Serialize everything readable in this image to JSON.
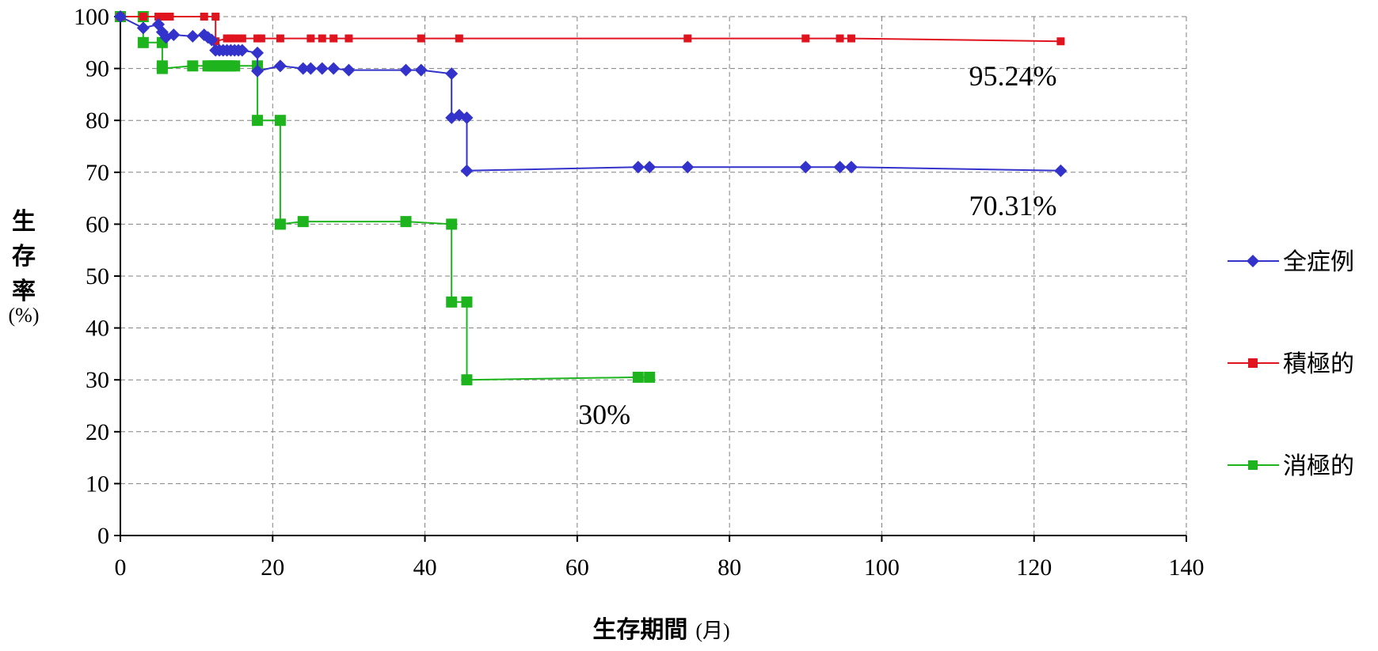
{
  "chart_data": {
    "type": "line",
    "xlabel": "生存期間",
    "xlabel_unit": "(月)",
    "ylabel": "生存率",
    "ylabel_unit": "(%)",
    "xlim": [
      0,
      140
    ],
    "ylim": [
      0,
      100
    ],
    "xticks": [
      0,
      20,
      40,
      60,
      80,
      100,
      120,
      140
    ],
    "yticks": [
      0,
      10,
      20,
      30,
      40,
      50,
      60,
      70,
      80,
      90,
      100
    ],
    "grid": true,
    "legend_position": "right",
    "series": [
      {
        "name": "全症例",
        "color": "#3333cc",
        "marker": "diamond",
        "x": [
          0,
          3,
          5,
          5.5,
          6,
          7,
          9.5,
          11,
          11.5,
          12,
          12.5,
          13,
          13.5,
          14,
          14.5,
          15,
          15.5,
          16,
          18,
          18,
          21,
          24,
          25,
          26.5,
          28,
          30,
          37.5,
          39.5,
          43.5,
          43.5,
          44.5,
          45.5,
          45.5,
          68,
          69.5,
          74.5,
          90,
          94.5,
          96,
          123.5
        ],
        "y": [
          100,
          97.8,
          98.5,
          97,
          96,
          96.5,
          96.2,
          96.5,
          96,
          95.5,
          93.5,
          93.5,
          93.5,
          93.5,
          93.5,
          93.5,
          93.5,
          93.5,
          93,
          89.5,
          90.5,
          90,
          90,
          90,
          90,
          89.7,
          89.7,
          89.7,
          89,
          80.5,
          81,
          80.5,
          70.3,
          71,
          71,
          71,
          71,
          71,
          71,
          70.3
        ]
      },
      {
        "name": "積極的",
        "color": "#e0141e",
        "marker": "square",
        "x": [
          0,
          3,
          5,
          5.5,
          6,
          6.5,
          11,
          12.5,
          12.5,
          14,
          14.5,
          15,
          16,
          18,
          18.5,
          21,
          25,
          26.5,
          28,
          30,
          39.5,
          44.5,
          74.5,
          90,
          94.5,
          96,
          123.5
        ],
        "y": [
          100,
          100,
          100,
          100,
          100,
          100,
          100,
          100,
          95.24,
          95.8,
          95.8,
          95.8,
          95.8,
          95.8,
          95.8,
          95.8,
          95.8,
          95.8,
          95.8,
          95.8,
          95.8,
          95.8,
          95.8,
          95.8,
          95.8,
          95.8,
          95.24
        ]
      },
      {
        "name": "消極的",
        "color": "#1eb41e",
        "marker": "square",
        "x": [
          0,
          3,
          3,
          5.5,
          5.5,
          5.5,
          9.5,
          11.5,
          12,
          12.5,
          13,
          13.5,
          14,
          14.5,
          15,
          18,
          18,
          21,
          21,
          24,
          37.5,
          43.5,
          43.5,
          45.5,
          45.5,
          68,
          69.5
        ],
        "y": [
          100,
          100,
          95,
          95,
          90.5,
          90,
          90.5,
          90.5,
          90.5,
          90.5,
          90.5,
          90.5,
          90.5,
          90.5,
          90.5,
          90.5,
          80,
          80,
          60,
          60.5,
          60.5,
          60,
          45,
          45,
          30,
          30.5,
          30.5
        ]
      }
    ],
    "annotations": [
      {
        "text": "95.24%",
        "x": 123,
        "y": 95.24
      },
      {
        "text": "70.31%",
        "x": 123,
        "y": 70.31
      },
      {
        "text": "30%",
        "x": 67,
        "y": 30
      }
    ]
  }
}
